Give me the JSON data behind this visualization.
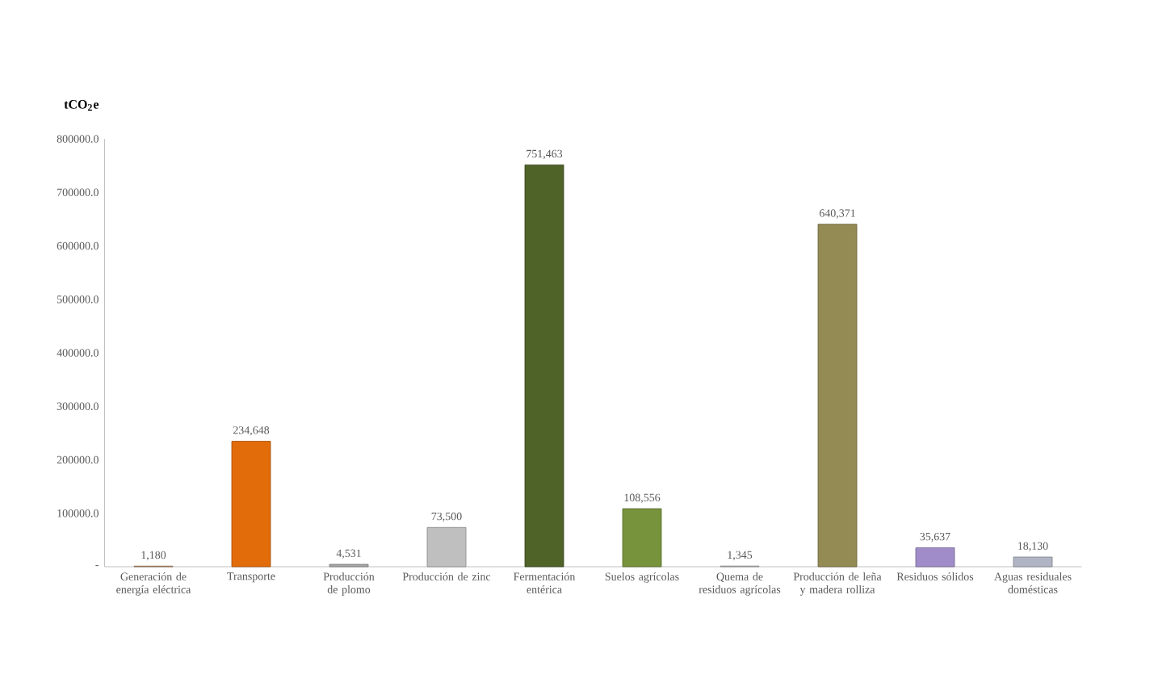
{
  "chart_data": {
    "type": "bar",
    "ylabel": "tCO$_{2}$e",
    "categories": [
      "Generación de energía eléctrica",
      "Transporte",
      "Producción de plomo",
      "Producción de zinc",
      "Fermentación entérica",
      "Suelos agrícolas",
      "Quema de residuos agrícolas",
      "Producción de leña y madera rolliza",
      "Residuos sólidos",
      "Aguas residuales domésticas"
    ],
    "values": [
      1180,
      234648,
      4531,
      73500,
      751463,
      108556,
      1345,
      640371,
      35637,
      18130
    ],
    "value_labels": [
      "1,180",
      "234,648",
      "4,531",
      "73,500",
      "751,463",
      "108,556",
      "1,345",
      "640,371",
      "35,637",
      "18,130"
    ],
    "colors": [
      "#c0906a",
      "#e36c0a",
      "#a6a6a6",
      "#bfbfbf",
      "#4f6228",
      "#77933c",
      "#bfbfbf",
      "#948a54",
      "#a08cc8",
      "#b0b4c4"
    ],
    "ylim": [
      0,
      800000
    ],
    "yticks": [
      {
        "value": 0,
        "label": "-"
      },
      {
        "value": 100000,
        "label": "100000.0"
      },
      {
        "value": 200000,
        "label": "200000.0"
      },
      {
        "value": 300000,
        "label": "300000.0"
      },
      {
        "value": 400000,
        "label": "400000.0"
      },
      {
        "value": 500000,
        "label": "500000.0"
      },
      {
        "value": 600000,
        "label": "600000.0"
      },
      {
        "value": 700000,
        "label": "700000.0"
      },
      {
        "value": 800000,
        "label": "800000.0"
      }
    ],
    "grid": false
  }
}
